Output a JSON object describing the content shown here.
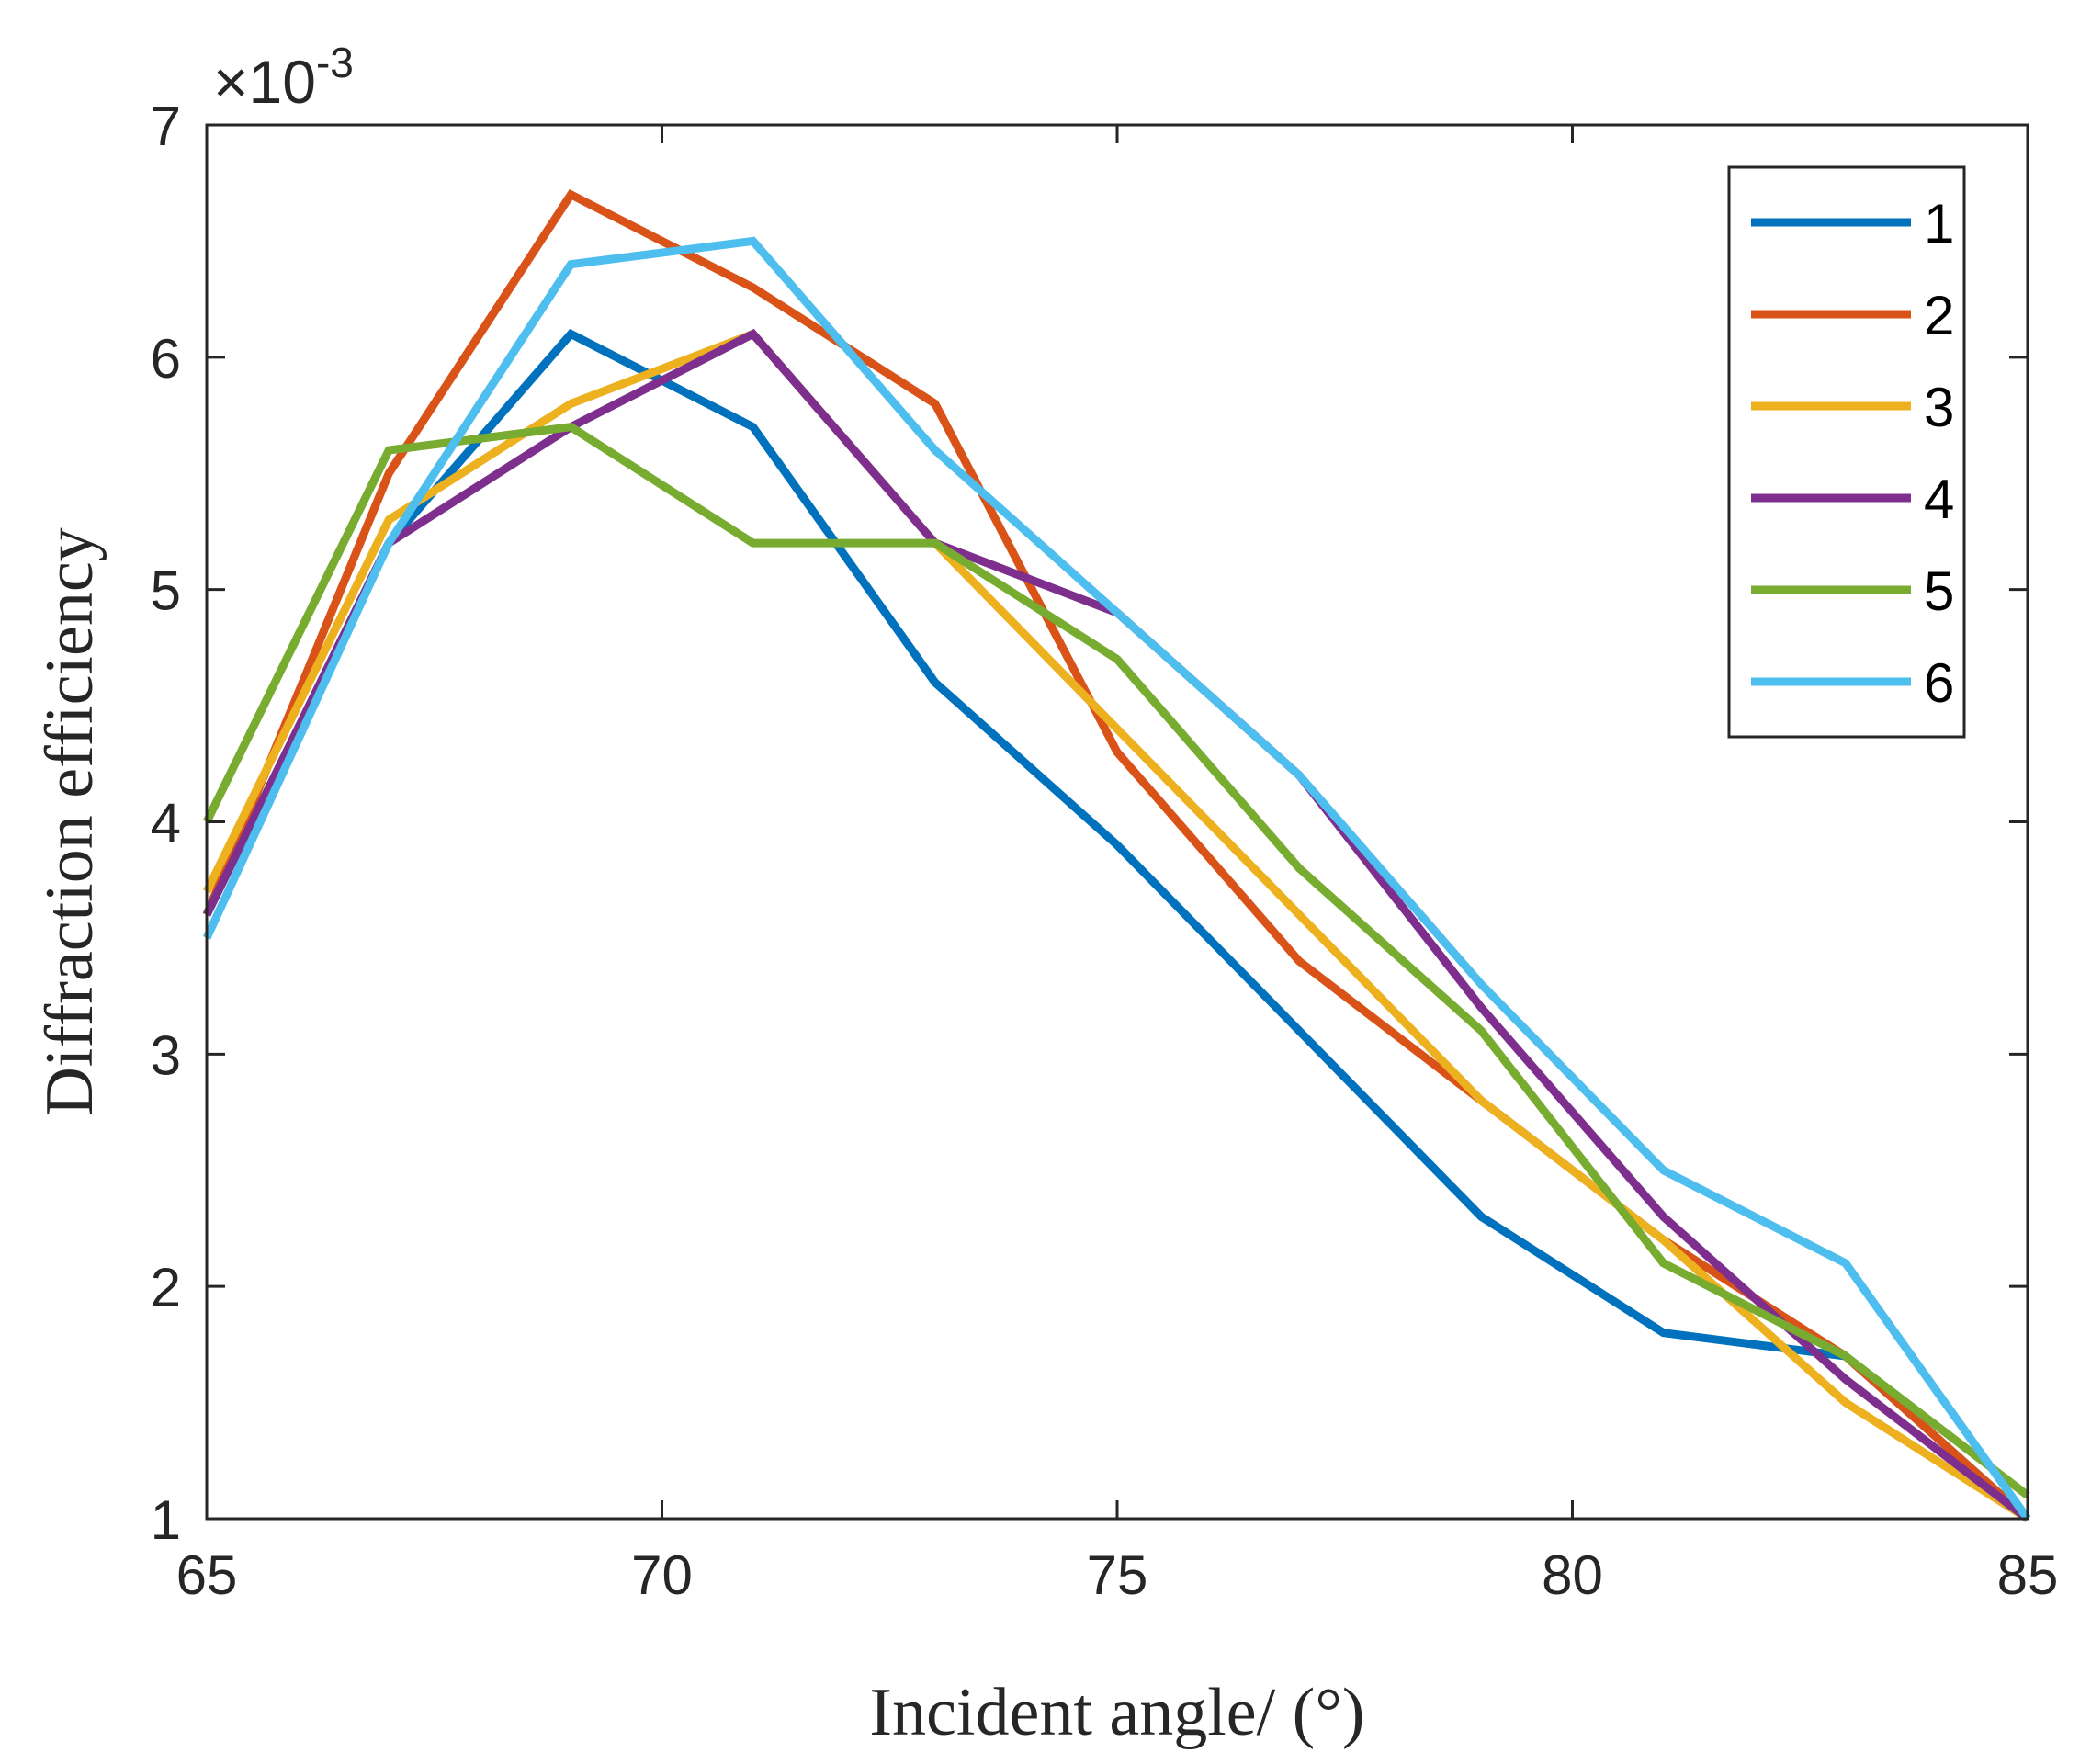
{
  "chart_data": {
    "type": "line",
    "title": "",
    "xlabel": "Incident angle/ (°)",
    "ylabel": "Diffraction efficiency",
    "xlim": [
      65,
      85
    ],
    "ylim": [
      1,
      7
    ],
    "xticks": [
      65,
      70,
      75,
      80,
      85
    ],
    "xtick_labels": [
      "65",
      "70",
      "75",
      "80",
      "85"
    ],
    "yticks": [
      1,
      2,
      3,
      4,
      5,
      6,
      7
    ],
    "ytick_labels": [
      "1",
      "2",
      "3",
      "4",
      "5",
      "6",
      "7"
    ],
    "y_exponent": {
      "base": "×10",
      "power": "-3"
    },
    "grid": false,
    "legend_position": "top-right",
    "x": [
      65,
      67,
      69,
      71,
      73,
      75,
      77,
      79,
      81,
      83,
      85
    ],
    "series": [
      {
        "name": "1",
        "color": "#0072BD",
        "values": [
          3.6,
          5.2,
          6.1,
          5.7,
          4.6,
          3.9,
          3.1,
          2.3,
          1.8,
          1.7,
          1.0
        ]
      },
      {
        "name": "2",
        "color": "#D95319",
        "values": [
          3.6,
          5.5,
          6.7,
          6.3,
          5.8,
          4.3,
          3.4,
          2.8,
          2.2,
          1.7,
          1.0
        ]
      },
      {
        "name": "3",
        "color": "#EDB120",
        "values": [
          3.7,
          5.3,
          5.8,
          6.1,
          5.2,
          4.4,
          3.6,
          2.8,
          2.2,
          1.5,
          1.0
        ]
      },
      {
        "name": "4",
        "color": "#7E2F8E",
        "values": [
          3.6,
          5.2,
          5.7,
          6.1,
          5.2,
          4.9,
          4.2,
          3.2,
          2.3,
          1.6,
          1.0
        ]
      },
      {
        "name": "5",
        "color": "#77AC30",
        "values": [
          4.0,
          5.6,
          5.7,
          5.2,
          5.2,
          4.7,
          3.8,
          3.1,
          2.1,
          1.7,
          1.1
        ]
      },
      {
        "name": "6",
        "color": "#4DBEEE",
        "values": [
          3.5,
          5.2,
          6.4,
          6.5,
          5.6,
          4.9,
          4.2,
          3.3,
          2.5,
          2.1,
          1.0
        ]
      }
    ]
  }
}
